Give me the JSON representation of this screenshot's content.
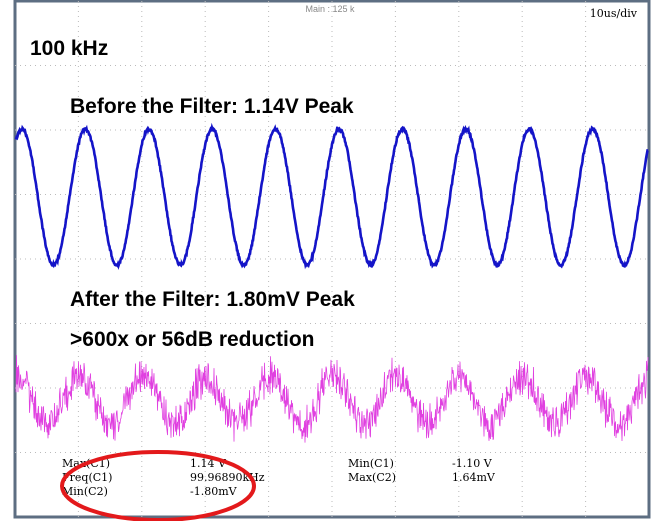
{
  "header": {
    "timebase": "Main : 125 k",
    "scale": "10us/div"
  },
  "annotations": {
    "frequency": "100 kHz",
    "before": "Before the Filter: 1.14V Peak",
    "after": "After the Filter: 1.80mV Peak",
    "reduction": ">600x or 56dB reduction"
  },
  "measurements": {
    "left": [
      {
        "label": "Max(C1)",
        "value": "1.14 V"
      },
      {
        "label": "Freq(C1)",
        "value": "99.96890kHz"
      },
      {
        "label": "Min(C2)",
        "value": "-1.80mV"
      }
    ],
    "right": [
      {
        "label": "Min(C1)",
        "value": "-1.10 V"
      },
      {
        "label": "Max(C2)",
        "value": "1.64mV"
      }
    ]
  }
}
